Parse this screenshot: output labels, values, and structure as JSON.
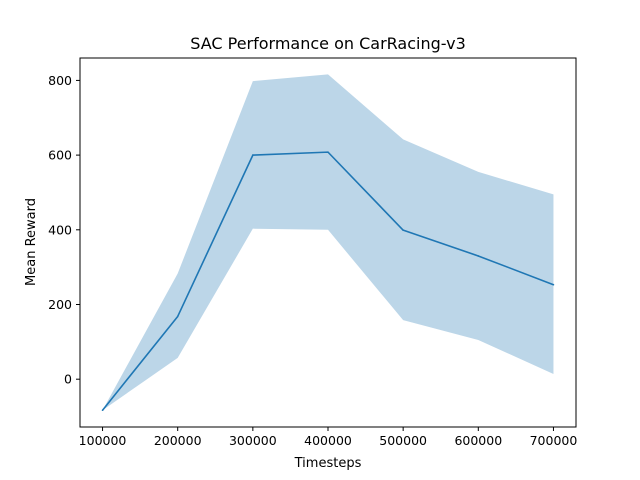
{
  "chart_data": {
    "type": "line",
    "title": "SAC Performance on CarRacing-v3",
    "xlabel": "Timesteps",
    "ylabel": "Mean Reward",
    "x": [
      100000,
      200000,
      300000,
      400000,
      500000,
      600000,
      700000
    ],
    "series": [
      {
        "values": [
          -83,
          168,
          600,
          608,
          399,
          330,
          253
        ],
        "band_lower": [
          -83,
          57,
          403,
          400,
          158,
          105,
          14
        ],
        "band_upper": [
          -83,
          283,
          798,
          816,
          642,
          555,
          495
        ],
        "line_color": "#1f77b4",
        "band_color": "#bcd6e8"
      }
    ],
    "xticks": [
      100000,
      200000,
      300000,
      400000,
      500000,
      600000,
      700000
    ],
    "yticks": [
      0,
      200,
      400,
      600,
      800
    ],
    "xlim": [
      70000,
      730000
    ],
    "ylim": [
      -128,
      860
    ],
    "grid": false,
    "legend": "none"
  }
}
